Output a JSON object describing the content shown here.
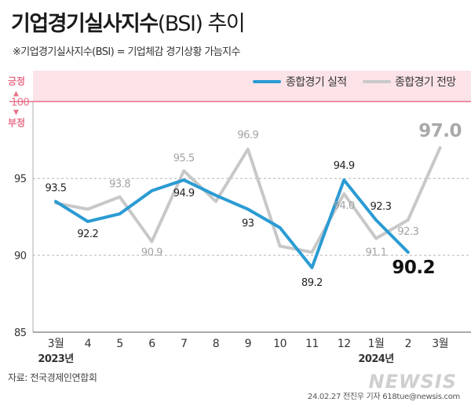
{
  "header": {
    "title_main": "기업경기실사지수",
    "title_rest": "(BSI) 추이",
    "subtitle": "※기업경기실사지수(BSI) = 기업체감 경기상황 가늠지수"
  },
  "footer": {
    "source": "자료: 전국경제인연합회",
    "credit": "24.02.27 전진우 기자 618tue@newsis.com",
    "watermark": "NEWSIS"
  },
  "colors": {
    "actual": "#2b9bd3",
    "forecast": "#c8c8c8",
    "positive_line": "#e8718a",
    "positive_text": "#e8718a",
    "pink_band": "#fbe3e8"
  },
  "chart_data": {
    "type": "line",
    "title": "",
    "xlabel": "",
    "ylabel": "",
    "categories": [
      "3월",
      "4",
      "5",
      "6",
      "7",
      "8",
      "9",
      "10",
      "11",
      "12",
      "1월",
      "2",
      "3월"
    ],
    "year_labels": [
      {
        "category_index": 0,
        "label": "2023년"
      },
      {
        "category_index": 10,
        "label": "2024년"
      }
    ],
    "ylim": [
      85,
      101.5
    ],
    "yticks": [
      85,
      90,
      95,
      100
    ],
    "reference_line": {
      "value": 100,
      "label_above": "긍정",
      "label_below": "부정",
      "arrow_up": "▲",
      "arrow_down": "▼"
    },
    "legend_position": "top-right",
    "grid": "dashed at 90 and 95",
    "series": [
      {
        "name": "종합경기 실적",
        "values": [
          93.5,
          92.2,
          92.7,
          94.2,
          94.9,
          93.9,
          93,
          91.8,
          89.2,
          94.9,
          92.3,
          90.2,
          null
        ],
        "labels": [
          "93.5",
          "92.2",
          "",
          "",
          "94.9",
          "",
          "93",
          "",
          "89.2",
          "94.9",
          "92.3",
          "90.2",
          ""
        ],
        "highlight_last": "90.2"
      },
      {
        "name": "종합경기 전망",
        "values": [
          93.4,
          93.0,
          93.8,
          90.9,
          95.5,
          93.5,
          96.9,
          90.6,
          90.2,
          94.0,
          91.1,
          92.3,
          97.0
        ],
        "labels": [
          "",
          "",
          "93.8",
          "90.9",
          "95.5",
          "",
          "96.9",
          "",
          "",
          "94.0",
          "91.1",
          "92.3",
          "97.0"
        ],
        "highlight_last": "97.0"
      }
    ]
  }
}
